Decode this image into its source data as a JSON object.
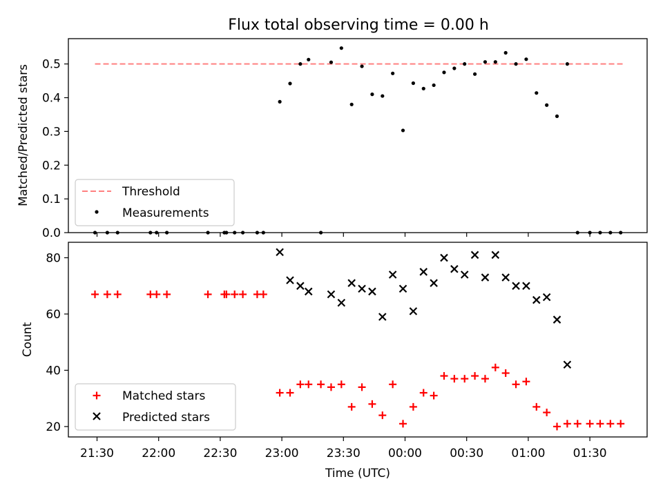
{
  "title": "Flux total observing time = 0.00 h",
  "chart_data": [
    {
      "type": "scatter",
      "panel": "top",
      "ylabel": "Matched/Predicted stars",
      "ylim": [
        0,
        0.575
      ],
      "yticks": [
        0.0,
        0.1,
        0.2,
        0.3,
        0.4,
        0.5
      ],
      "ytick_labels": [
        "0.0",
        "0.1",
        "0.2",
        "0.3",
        "0.4",
        "0.5"
      ],
      "legend_position": "lower-left",
      "threshold": {
        "name": "Threshold",
        "y": 0.5,
        "x_start": "21:29",
        "x_end": "01:47",
        "color": "#ff7f7f",
        "style": "dashed"
      },
      "series": [
        {
          "name": "Measurements",
          "color": "#000000",
          "marker": "dot",
          "points": [
            [
              "21:29",
              0.0
            ],
            [
              "21:35",
              0.0
            ],
            [
              "21:40",
              0.0
            ],
            [
              "21:56",
              0.0
            ],
            [
              "21:59",
              0.0
            ],
            [
              "22:04",
              0.0
            ],
            [
              "22:24",
              0.0
            ],
            [
              "22:32",
              0.0
            ],
            [
              "22:33",
              0.0
            ],
            [
              "22:37",
              0.0
            ],
            [
              "22:41",
              0.0
            ],
            [
              "22:48",
              0.0
            ],
            [
              "22:51",
              0.0
            ],
            [
              "22:59",
              0.388
            ],
            [
              "23:04",
              0.442
            ],
            [
              "23:09",
              0.5
            ],
            [
              "23:13",
              0.513
            ],
            [
              "23:19",
              0.0
            ],
            [
              "23:24",
              0.505
            ],
            [
              "23:29",
              0.547
            ],
            [
              "23:34",
              0.38
            ],
            [
              "23:39",
              0.493
            ],
            [
              "23:44",
              0.41
            ],
            [
              "23:49",
              0.405
            ],
            [
              "23:54",
              0.472
            ],
            [
              "23:59",
              0.303
            ],
            [
              "00:04",
              0.443
            ],
            [
              "00:09",
              0.427
            ],
            [
              "00:14",
              0.437
            ],
            [
              "00:19",
              0.475
            ],
            [
              "00:24",
              0.487
            ],
            [
              "00:29",
              0.5
            ],
            [
              "00:34",
              0.47
            ],
            [
              "00:39",
              0.506
            ],
            [
              "00:44",
              0.506
            ],
            [
              "00:49",
              0.533
            ],
            [
              "00:54",
              0.5
            ],
            [
              "00:59",
              0.514
            ],
            [
              "01:04",
              0.414
            ],
            [
              "01:09",
              0.378
            ],
            [
              "01:14",
              0.345
            ],
            [
              "01:19",
              0.5
            ],
            [
              "01:24",
              0.0
            ],
            [
              "01:30",
              0.0
            ],
            [
              "01:35",
              0.0
            ],
            [
              "01:40",
              0.0
            ],
            [
              "01:45",
              0.0
            ]
          ]
        }
      ]
    },
    {
      "type": "scatter",
      "panel": "bottom",
      "xlabel": "Time (UTC)",
      "ylabel": "Count",
      "ylim": [
        16.3,
        85.5
      ],
      "yticks": [
        20,
        40,
        60,
        80
      ],
      "ytick_labels": [
        "20",
        "40",
        "60",
        "80"
      ],
      "xticks": [
        "21:30",
        "22:00",
        "22:30",
        "23:00",
        "23:30",
        "00:00",
        "00:30",
        "01:00",
        "01:30"
      ],
      "legend_position": "lower-left",
      "series": [
        {
          "name": "Matched stars",
          "color": "#ff0000",
          "marker": "plus",
          "points": [
            [
              "21:29",
              67
            ],
            [
              "21:35",
              67
            ],
            [
              "21:40",
              67
            ],
            [
              "21:56",
              67
            ],
            [
              "21:59",
              67
            ],
            [
              "22:04",
              67
            ],
            [
              "22:24",
              67
            ],
            [
              "22:32",
              67
            ],
            [
              "22:33",
              67
            ],
            [
              "22:37",
              67
            ],
            [
              "22:41",
              67
            ],
            [
              "22:48",
              67
            ],
            [
              "22:51",
              67
            ],
            [
              "22:59",
              32
            ],
            [
              "23:04",
              32
            ],
            [
              "23:09",
              35
            ],
            [
              "23:13",
              35
            ],
            [
              "23:19",
              35
            ],
            [
              "23:24",
              34
            ],
            [
              "23:29",
              35
            ],
            [
              "23:34",
              27
            ],
            [
              "23:39",
              34
            ],
            [
              "23:44",
              28
            ],
            [
              "23:49",
              24
            ],
            [
              "23:54",
              35
            ],
            [
              "23:59",
              21
            ],
            [
              "00:04",
              27
            ],
            [
              "00:09",
              32
            ],
            [
              "00:14",
              31
            ],
            [
              "00:19",
              38
            ],
            [
              "00:24",
              37
            ],
            [
              "00:29",
              37
            ],
            [
              "00:34",
              38
            ],
            [
              "00:39",
              37
            ],
            [
              "00:44",
              41
            ],
            [
              "00:49",
              39
            ],
            [
              "00:54",
              35
            ],
            [
              "00:59",
              36
            ],
            [
              "01:04",
              27
            ],
            [
              "01:09",
              25
            ],
            [
              "01:14",
              20
            ],
            [
              "01:19",
              21
            ],
            [
              "01:24",
              21
            ],
            [
              "01:30",
              21
            ],
            [
              "01:35",
              21
            ],
            [
              "01:40",
              21
            ],
            [
              "01:45",
              21
            ]
          ]
        },
        {
          "name": "Predicted stars",
          "color": "#000000",
          "marker": "x",
          "points": [
            [
              "22:59",
              82
            ],
            [
              "23:04",
              72
            ],
            [
              "23:09",
              70
            ],
            [
              "23:13",
              68
            ],
            [
              "23:24",
              67
            ],
            [
              "23:29",
              64
            ],
            [
              "23:34",
              71
            ],
            [
              "23:39",
              69
            ],
            [
              "23:44",
              68
            ],
            [
              "23:49",
              59
            ],
            [
              "23:54",
              74
            ],
            [
              "23:59",
              69
            ],
            [
              "00:04",
              61
            ],
            [
              "00:09",
              75
            ],
            [
              "00:14",
              71
            ],
            [
              "00:19",
              80
            ],
            [
              "00:24",
              76
            ],
            [
              "00:29",
              74
            ],
            [
              "00:34",
              81
            ],
            [
              "00:39",
              73
            ],
            [
              "00:44",
              81
            ],
            [
              "00:49",
              73
            ],
            [
              "00:54",
              70
            ],
            [
              "00:59",
              70
            ],
            [
              "01:04",
              65
            ],
            [
              "01:09",
              66
            ],
            [
              "01:14",
              58
            ],
            [
              "01:19",
              42
            ]
          ]
        }
      ]
    }
  ]
}
